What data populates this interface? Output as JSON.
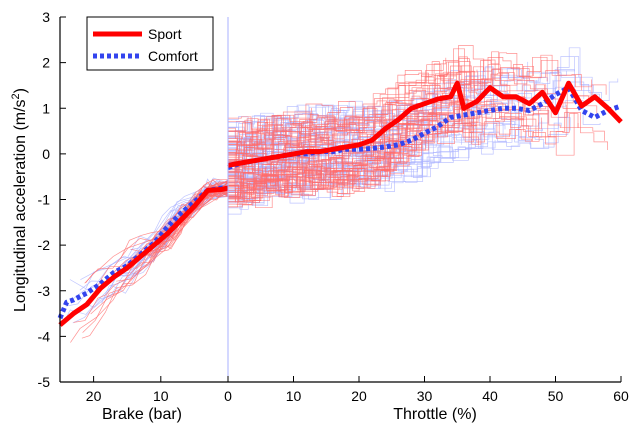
{
  "chart_data": {
    "type": "line",
    "ylabel": "Longitudinal acceleration (m/s²)",
    "ylim": [
      -5,
      3
    ],
    "yticks": [
      -5,
      -4,
      -3,
      -2,
      -1,
      0,
      1,
      2,
      3
    ],
    "grid": false,
    "legend_position": "top-left",
    "panels": [
      {
        "name": "brake",
        "xlabel": "Brake (bar)",
        "xlim": [
          0,
          25
        ],
        "x_reversed": true,
        "xticks": [
          20,
          10,
          0
        ],
        "series": [
          {
            "name": "Sport",
            "color": "#ff0000",
            "style": "solid",
            "x": [
              25,
              23,
              21,
              19,
              17,
              15,
              13,
              11,
              9,
              7,
              5,
              3,
              1,
              0
            ],
            "y": [
              -3.75,
              -3.5,
              -3.3,
              -2.95,
              -2.7,
              -2.5,
              -2.25,
              -2.0,
              -1.75,
              -1.45,
              -1.15,
              -0.8,
              -0.78,
              -0.75
            ]
          },
          {
            "name": "Comfort",
            "color": "#3344ee",
            "style": "dotted",
            "x": [
              25,
              24,
              23,
              21,
              19,
              17,
              15,
              13,
              11,
              9,
              7,
              5,
              3,
              1,
              0
            ],
            "y": [
              -3.6,
              -3.25,
              -3.2,
              -3.05,
              -2.85,
              -2.6,
              -2.45,
              -2.2,
              -1.95,
              -1.6,
              -1.3,
              -1.05,
              -0.8,
              -0.75,
              -0.75
            ]
          }
        ]
      },
      {
        "name": "throttle",
        "xlabel": "Throttle (%)",
        "xlim": [
          0,
          60
        ],
        "x_reversed": false,
        "xticks": [
          0,
          10,
          20,
          30,
          40,
          50,
          60
        ],
        "series": [
          {
            "name": "Sport",
            "color": "#ff0000",
            "style": "solid",
            "x": [
              0,
              2,
              4,
              6,
              8,
              10,
              12,
              14,
              16,
              18,
              20,
              22,
              24,
              26,
              28,
              30,
              32,
              34,
              35,
              36,
              38,
              40,
              42,
              44,
              46,
              48,
              50,
              52,
              54,
              56,
              58,
              60
            ],
            "y": [
              -0.25,
              -0.2,
              -0.15,
              -0.1,
              -0.05,
              0.0,
              0.05,
              0.05,
              0.1,
              0.15,
              0.2,
              0.3,
              0.55,
              0.75,
              1.0,
              1.1,
              1.2,
              1.25,
              1.55,
              1.0,
              1.15,
              1.45,
              1.25,
              1.25,
              1.1,
              1.35,
              0.9,
              1.55,
              1.05,
              1.25,
              1.0,
              0.7
            ]
          },
          {
            "name": "Comfort",
            "color": "#3344ee",
            "style": "dotted",
            "x": [
              0,
              2,
              4,
              6,
              8,
              10,
              12,
              14,
              16,
              18,
              20,
              22,
              24,
              26,
              28,
              30,
              32,
              34,
              36,
              38,
              40,
              42,
              44,
              46,
              48,
              50,
              52,
              54,
              56,
              58,
              60
            ],
            "y": [
              -0.3,
              -0.2,
              -0.15,
              -0.1,
              -0.05,
              0.0,
              0.0,
              0.05,
              0.05,
              0.1,
              0.1,
              0.12,
              0.15,
              0.2,
              0.3,
              0.45,
              0.6,
              0.8,
              0.85,
              0.9,
              0.95,
              1.0,
              1.0,
              0.95,
              1.1,
              1.3,
              1.45,
              0.95,
              0.8,
              0.95,
              1.05
            ]
          }
        ]
      }
    ],
    "raw_traces_colors": {
      "sport": "#ff6b6b",
      "comfort": "#aab2ff"
    }
  },
  "legend": {
    "items": [
      {
        "label": "Sport",
        "color": "#ff0000",
        "style": "solid"
      },
      {
        "label": "Comfort",
        "color": "#3344ee",
        "style": "dotted"
      }
    ]
  },
  "labels": {
    "ylabel_main": "Longitudinal acceleration (m/s",
    "ylabel_sup": "2",
    "ylabel_end": ")",
    "xlabel_brake": "Brake (bar)",
    "xlabel_throttle": "Throttle (%)"
  }
}
